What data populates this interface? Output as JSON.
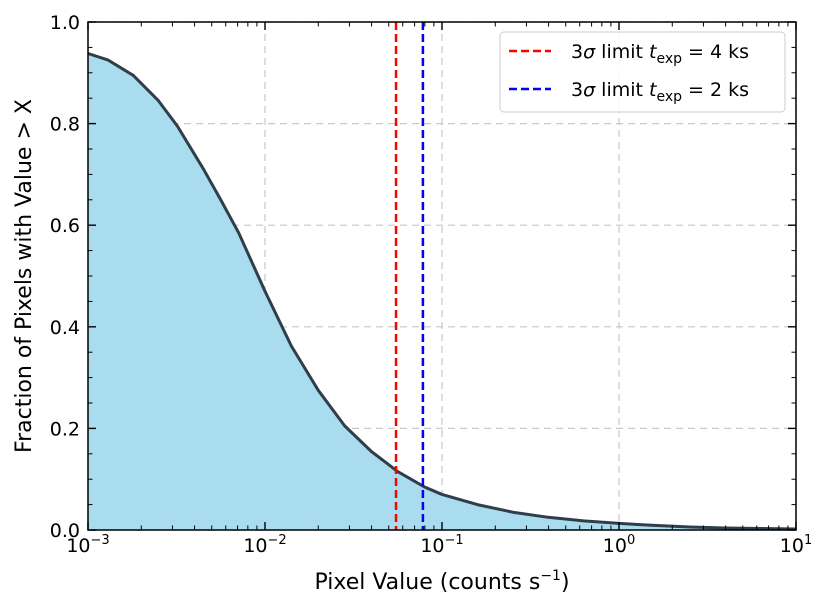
{
  "chart_data": {
    "type": "area",
    "xlabel_main": "Pixel Value (counts s",
    "xlabel_sup": "−1",
    "xlabel_close": ")",
    "ylabel": "Fraction of Pixels with Value > X",
    "x_scale": "log",
    "xlim": [
      0.001,
      10
    ],
    "ylim": [
      0.0,
      1.0
    ],
    "grid": true,
    "legend_position": "top-right",
    "x_ticks": [
      {
        "value": 0.001,
        "base": "10",
        "exp": "−3"
      },
      {
        "value": 0.01,
        "base": "10",
        "exp": "−2"
      },
      {
        "value": 0.1,
        "base": "10",
        "exp": "−1"
      },
      {
        "value": 1,
        "base": "10",
        "exp": "0"
      },
      {
        "value": 10,
        "base": "10",
        "exp": "1"
      }
    ],
    "y_ticks": [
      {
        "value": 0.0,
        "label": "0.0"
      },
      {
        "value": 0.2,
        "label": "0.2"
      },
      {
        "value": 0.4,
        "label": "0.4"
      },
      {
        "value": 0.6,
        "label": "0.6"
      },
      {
        "value": 0.8,
        "label": "0.8"
      },
      {
        "value": 1.0,
        "label": "1.0"
      }
    ],
    "series": [
      {
        "x": [
          0.001,
          0.0013,
          0.0018,
          0.0025,
          0.0032,
          0.0045,
          0.0056,
          0.0071,
          0.01,
          0.0141,
          0.02,
          0.0282,
          0.0398,
          0.0562,
          0.0794,
          0.1,
          0.1585,
          0.2512,
          0.3981,
          0.631,
          1,
          1.585,
          2.512,
          3.981,
          6.31,
          10
        ],
        "y": [
          0.938,
          0.925,
          0.895,
          0.845,
          0.795,
          0.71,
          0.651,
          0.585,
          0.47,
          0.362,
          0.275,
          0.205,
          0.155,
          0.115,
          0.085,
          0.07,
          0.05,
          0.035,
          0.025,
          0.018,
          0.013,
          0.009,
          0.006,
          0.004,
          0.003,
          0.002
        ],
        "color": "#2f3e48",
        "fill": "#aadcef"
      }
    ],
    "vlines": [
      {
        "x": 0.055,
        "color": "#ff0000",
        "label_pre": "3",
        "label_sigma": "σ",
        "label_mid": " limit ",
        "label_t": "t",
        "label_sub": "exp",
        "label_post": " = 4 ks"
      },
      {
        "x": 0.078,
        "color": "#0000ff",
        "label_pre": "3",
        "label_sigma": "σ",
        "label_mid": " limit ",
        "label_t": "t",
        "label_sub": "exp",
        "label_post": " = 2 ks"
      }
    ]
  }
}
